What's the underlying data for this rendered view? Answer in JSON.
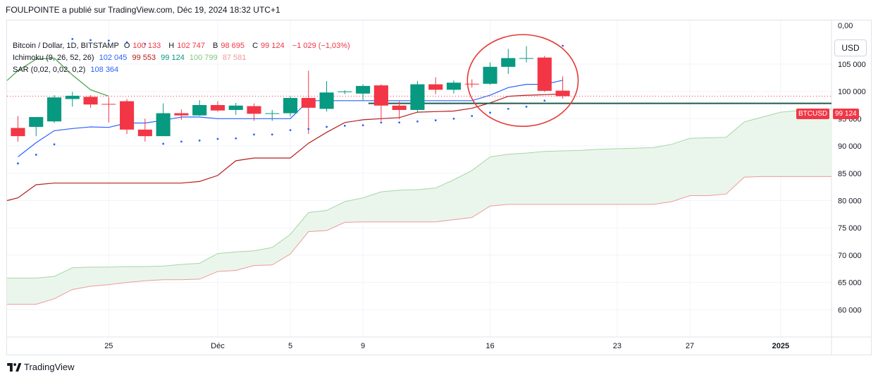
{
  "header": {
    "publisher_line": "FOULPOINTE a publié sur TradingView.com, Déc 19, 2024 18:32 UTC+1"
  },
  "legend": {
    "symbol": "Bitcoin / Dollar, 1D, BITSTAMP",
    "open_label": "O",
    "open": "100 133",
    "high_label": "H",
    "high": "102 747",
    "low_label": "B",
    "low": "98 695",
    "close_label": "C",
    "close": "99 124",
    "change": "−1 029 (−1,03%)",
    "ichimoku_label": "Ichimoku (9, 26, 52, 26)",
    "ichimoku_values": [
      "102 045",
      "99 553",
      "99 124",
      "100 799",
      "87 581"
    ],
    "sar_label": "SAR (0,02, 0,02, 0,2)",
    "sar_value": "108 364"
  },
  "currency_button": "USD",
  "price_top_label": "0,00",
  "last_price_tag": {
    "symbol": "BTCUSD",
    "price": "99 124"
  },
  "footer": {
    "brand": "TradingView"
  },
  "colors": {
    "up": "#089981",
    "down": "#f23645",
    "tenkan": "#2962ff",
    "kijun": "#b71c1c",
    "chikou": "#43a047",
    "spanA": "#a5d6a7",
    "spanB": "#ef9a9a",
    "cloud": "#e8f5e9",
    "sar": "#2962ff",
    "annotation": "#e53935",
    "hline": "#1e5e4e"
  },
  "chart_data": {
    "type": "candlestick",
    "title": "Bitcoin / Dollar, 1D, BITSTAMP",
    "yaxis": {
      "range": [
        55000,
        113000
      ],
      "ticks": [
        "60 000",
        "65 000",
        "70 000",
        "75 000",
        "80 000",
        "85 000",
        "90 000",
        "95 000",
        "100 000",
        "105 000"
      ],
      "tick_values": [
        60000,
        65000,
        70000,
        75000,
        80000,
        85000,
        90000,
        95000,
        100000,
        105000
      ]
    },
    "xaxis": {
      "ticks": [
        "25",
        "Déc",
        "5",
        "9",
        "16",
        "23",
        "27",
        "2025"
      ],
      "tick_days": [
        5,
        11,
        15,
        19,
        26,
        33,
        37,
        42
      ],
      "day_range": [
        -0.6,
        44.8
      ]
    },
    "candles": [
      {
        "d": 0,
        "o": 93300,
        "h": 95500,
        "l": 90800,
        "c": 91800
      },
      {
        "d": 1,
        "o": 93500,
        "h": 95200,
        "l": 91800,
        "c": 95300
      },
      {
        "d": 2,
        "o": 94500,
        "h": 99300,
        "l": 94200,
        "c": 98900
      },
      {
        "d": 3,
        "o": 98600,
        "h": 99900,
        "l": 97200,
        "c": 99200
      },
      {
        "d": 4,
        "o": 99000,
        "h": 99300,
        "l": 97000,
        "c": 97600
      },
      {
        "d": 5,
        "o": 97700,
        "h": 98900,
        "l": 94300,
        "c": 97600
      },
      {
        "d": 6,
        "o": 98200,
        "h": 98600,
        "l": 92200,
        "c": 93000
      },
      {
        "d": 7,
        "o": 93000,
        "h": 95000,
        "l": 90800,
        "c": 91800
      },
      {
        "d": 8,
        "o": 91800,
        "h": 97800,
        "l": 91800,
        "c": 96000
      },
      {
        "d": 9,
        "o": 96000,
        "h": 96700,
        "l": 94800,
        "c": 95600
      },
      {
        "d": 10,
        "o": 95600,
        "h": 98400,
        "l": 95500,
        "c": 97500
      },
      {
        "d": 11,
        "o": 97500,
        "h": 98200,
        "l": 96300,
        "c": 96500
      },
      {
        "d": 12,
        "o": 96600,
        "h": 97900,
        "l": 95700,
        "c": 97400
      },
      {
        "d": 13,
        "o": 97300,
        "h": 97800,
        "l": 94600,
        "c": 95900
      },
      {
        "d": 14,
        "o": 95900,
        "h": 96600,
        "l": 94600,
        "c": 96000
      },
      {
        "d": 15,
        "o": 96000,
        "h": 99100,
        "l": 95400,
        "c": 98800
      },
      {
        "d": 16,
        "o": 98800,
        "h": 103800,
        "l": 92200,
        "c": 97000
      },
      {
        "d": 17,
        "o": 96800,
        "h": 101900,
        "l": 96300,
        "c": 99800
      },
      {
        "d": 18,
        "o": 99900,
        "h": 100200,
        "l": 99500,
        "c": 100000
      },
      {
        "d": 19,
        "o": 99600,
        "h": 101300,
        "l": 98400,
        "c": 101000
      },
      {
        "d": 20,
        "o": 101100,
        "h": 101300,
        "l": 94600,
        "c": 97400
      },
      {
        "d": 21,
        "o": 97400,
        "h": 98200,
        "l": 94900,
        "c": 96600
      },
      {
        "d": 22,
        "o": 96600,
        "h": 101900,
        "l": 96200,
        "c": 101300
      },
      {
        "d": 23,
        "o": 101300,
        "h": 102600,
        "l": 99500,
        "c": 100300
      },
      {
        "d": 24,
        "o": 100300,
        "h": 102000,
        "l": 99600,
        "c": 101600
      },
      {
        "d": 25,
        "o": 101400,
        "h": 102200,
        "l": 100700,
        "c": 101300
      },
      {
        "d": 26,
        "o": 101400,
        "h": 105300,
        "l": 101200,
        "c": 104500
      },
      {
        "d": 27,
        "o": 104500,
        "h": 107800,
        "l": 103200,
        "c": 106100
      },
      {
        "d": 28,
        "o": 106100,
        "h": 108300,
        "l": 105300,
        "c": 106100
      },
      {
        "d": 29,
        "o": 106200,
        "h": 106500,
        "l": 99900,
        "c": 100100
      },
      {
        "d": 30,
        "o": 100133,
        "h": 102747,
        "l": 98695,
        "c": 99124
      }
    ],
    "tenkan": [
      [
        0,
        88000
      ],
      [
        1,
        90600
      ],
      [
        2,
        92800
      ],
      [
        3,
        93200
      ],
      [
        4,
        93500
      ],
      [
        5,
        93400
      ],
      [
        6,
        94200
      ],
      [
        7,
        94200
      ],
      [
        8,
        94700
      ],
      [
        9,
        95300
      ],
      [
        10,
        95300
      ],
      [
        11,
        95000
      ],
      [
        12,
        95000
      ],
      [
        13,
        95000
      ],
      [
        14,
        95000
      ],
      [
        15,
        95000
      ],
      [
        16,
        98300
      ],
      [
        17,
        98300
      ],
      [
        18,
        98300
      ],
      [
        19,
        98300
      ],
      [
        20,
        98300
      ],
      [
        21,
        98300
      ],
      [
        22,
        98300
      ],
      [
        23,
        98300
      ],
      [
        24,
        98300
      ],
      [
        25,
        98300
      ],
      [
        26,
        99300
      ],
      [
        27,
        100700
      ],
      [
        28,
        101300
      ],
      [
        29,
        101300
      ],
      [
        30,
        102045
      ]
    ],
    "kijun": [
      [
        -0.6,
        80000
      ],
      [
        0,
        80500
      ],
      [
        1,
        82900
      ],
      [
        2,
        83200
      ],
      [
        3,
        83200
      ],
      [
        4,
        83200
      ],
      [
        5,
        83200
      ],
      [
        6,
        83200
      ],
      [
        7,
        83200
      ],
      [
        8,
        83200
      ],
      [
        9,
        83200
      ],
      [
        10,
        83500
      ],
      [
        11,
        84600
      ],
      [
        12,
        87300
      ],
      [
        13,
        87800
      ],
      [
        14,
        87800
      ],
      [
        15,
        87800
      ],
      [
        16,
        90500
      ],
      [
        17,
        92500
      ],
      [
        18,
        94300
      ],
      [
        19,
        94800
      ],
      [
        20,
        95000
      ],
      [
        21,
        95200
      ],
      [
        22,
        96200
      ],
      [
        23,
        96300
      ],
      [
        24,
        96400
      ],
      [
        25,
        96900
      ],
      [
        26,
        97900
      ],
      [
        27,
        99100
      ],
      [
        28,
        99300
      ],
      [
        29,
        99400
      ],
      [
        30,
        99553
      ]
    ],
    "chikou": [
      [
        -0.6,
        102000
      ],
      [
        0,
        103800
      ],
      [
        1,
        105900
      ],
      [
        2,
        106100
      ],
      [
        3,
        103000
      ],
      [
        4,
        100300
      ],
      [
        5,
        99124
      ]
    ],
    "span_a": [
      [
        -0.6,
        65800
      ],
      [
        0,
        65800
      ],
      [
        1,
        65800
      ],
      [
        2,
        66100
      ],
      [
        3,
        67700
      ],
      [
        4,
        67800
      ],
      [
        5,
        67800
      ],
      [
        6,
        67900
      ],
      [
        7,
        67900
      ],
      [
        8,
        68000
      ],
      [
        9,
        68300
      ],
      [
        10,
        68500
      ],
      [
        11,
        70300
      ],
      [
        12,
        70600
      ],
      [
        13,
        70800
      ],
      [
        14,
        71400
      ],
      [
        15,
        73800
      ],
      [
        16,
        77800
      ],
      [
        17,
        78200
      ],
      [
        18,
        79800
      ],
      [
        19,
        80500
      ],
      [
        20,
        81600
      ],
      [
        21,
        81900
      ],
      [
        22,
        82000
      ],
      [
        23,
        82300
      ],
      [
        24,
        83800
      ],
      [
        25,
        85500
      ],
      [
        26,
        88000
      ],
      [
        27,
        88500
      ],
      [
        28,
        88700
      ],
      [
        29,
        89000
      ],
      [
        30,
        89100
      ],
      [
        31,
        89200
      ],
      [
        32,
        89400
      ],
      [
        33,
        89500
      ],
      [
        34,
        89600
      ],
      [
        35,
        89700
      ],
      [
        36,
        90300
      ],
      [
        37,
        91400
      ],
      [
        38,
        91500
      ],
      [
        39,
        91600
      ],
      [
        40,
        94400
      ],
      [
        41,
        95300
      ],
      [
        42,
        96200
      ],
      [
        43,
        96500
      ],
      [
        44,
        96700
      ],
      [
        44.8,
        96800
      ]
    ],
    "span_b": [
      [
        -0.6,
        61000
      ],
      [
        0,
        61000
      ],
      [
        1,
        61000
      ],
      [
        2,
        62000
      ],
      [
        3,
        63700
      ],
      [
        4,
        64300
      ],
      [
        5,
        64600
      ],
      [
        6,
        65000
      ],
      [
        7,
        65300
      ],
      [
        8,
        65500
      ],
      [
        9,
        65500
      ],
      [
        10,
        65600
      ],
      [
        11,
        67000
      ],
      [
        12,
        67200
      ],
      [
        13,
        68100
      ],
      [
        14,
        68200
      ],
      [
        15,
        70200
      ],
      [
        16,
        74300
      ],
      [
        17,
        74500
      ],
      [
        18,
        76000
      ],
      [
        19,
        76100
      ],
      [
        20,
        76100
      ],
      [
        21,
        76100
      ],
      [
        22,
        76100
      ],
      [
        23,
        76100
      ],
      [
        24,
        76500
      ],
      [
        25,
        76900
      ],
      [
        26,
        79000
      ],
      [
        27,
        79300
      ],
      [
        28,
        79300
      ],
      [
        29,
        79300
      ],
      [
        30,
        79300
      ],
      [
        31,
        79300
      ],
      [
        32,
        79300
      ],
      [
        33,
        79300
      ],
      [
        34,
        79300
      ],
      [
        35,
        79300
      ],
      [
        36,
        79800
      ],
      [
        37,
        80900
      ],
      [
        38,
        80900
      ],
      [
        39,
        81200
      ],
      [
        40,
        84300
      ],
      [
        41,
        84400
      ],
      [
        42,
        84400
      ],
      [
        43,
        84400
      ],
      [
        44,
        84400
      ],
      [
        44.8,
        84400
      ]
    ],
    "sar": [
      [
        0,
        86800
      ],
      [
        1,
        88400
      ],
      [
        2,
        90300
      ],
      [
        3,
        109600
      ],
      [
        4,
        109400
      ],
      [
        5,
        109300
      ],
      [
        6,
        109000
      ],
      [
        7,
        108700
      ],
      [
        8,
        90400
      ],
      [
        9,
        90800
      ],
      [
        10,
        91000
      ],
      [
        11,
        91300
      ],
      [
        12,
        91400
      ],
      [
        13,
        92100
      ],
      [
        14,
        92100
      ],
      [
        15,
        92900
      ],
      [
        16,
        93100
      ],
      [
        17,
        93500
      ],
      [
        18,
        93700
      ],
      [
        19,
        93800
      ],
      [
        20,
        94300
      ],
      [
        21,
        94300
      ],
      [
        22,
        94500
      ],
      [
        23,
        94700
      ],
      [
        24,
        95000
      ],
      [
        25,
        95500
      ],
      [
        26,
        96100
      ],
      [
        27,
        96800
      ],
      [
        28,
        97200
      ],
      [
        29,
        98300
      ],
      [
        30,
        108364
      ]
    ],
    "horizontal_lines": [
      {
        "from_day": 19.3,
        "to_day": 44.8,
        "value": 97800
      },
      {
        "from_day": -0.6,
        "to_day": 44.8,
        "value": 99124,
        "style": "dotted"
      }
    ],
    "annotation_ellipse": {
      "center_day": 27.8,
      "center_value": 102000,
      "rx_days": 3.05,
      "ry_value": 8400
    },
    "grid": true,
    "legend_position": "top-left"
  }
}
